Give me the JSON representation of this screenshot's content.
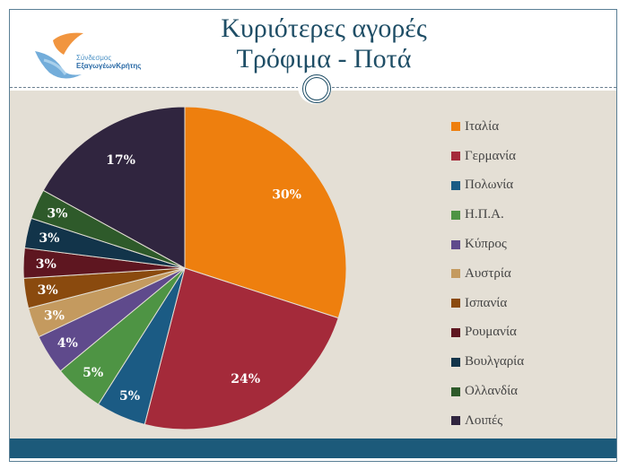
{
  "header": {
    "title_line1": "Κυριότερες αγορές",
    "title_line2": "Τρόφιμα - Ποτά",
    "logo_text_line1": "Σύνδεσμος",
    "logo_text_line2": "ΕξαγωγέωνΚρήτης"
  },
  "colors": {
    "frame": "#5a7f95",
    "content_bg": "#e4dfd5",
    "footer": "#1c5a7a",
    "title": "#1f4e66"
  },
  "chart_data": {
    "type": "pie",
    "title": "",
    "start_angle": "top, clockwise",
    "legend_position": "right",
    "categories": [
      "Ιταλία",
      "Γερμανία",
      "Πολωνία",
      "Η.Π.Α.",
      "Κύπρος",
      "Αυστρία",
      "Ισπανία",
      "Ρουμανία",
      "Βουλγαρία",
      "Ολλανδία",
      "Λοιπές"
    ],
    "values": [
      30,
      24,
      5,
      5,
      4,
      3,
      3,
      3,
      3,
      3,
      17
    ],
    "labels": [
      "30%",
      "24%",
      "5%",
      "5%",
      "4%",
      "3%",
      "3%",
      "3%",
      "3%",
      "3%",
      "17%"
    ],
    "colors": [
      "#ee7f0e",
      "#a42a3a",
      "#1b5b84",
      "#4e9444",
      "#5f4a8c",
      "#c49a5f",
      "#8a4a0e",
      "#5e1620",
      "#12344a",
      "#2e5a2a",
      "#30253f"
    ]
  }
}
